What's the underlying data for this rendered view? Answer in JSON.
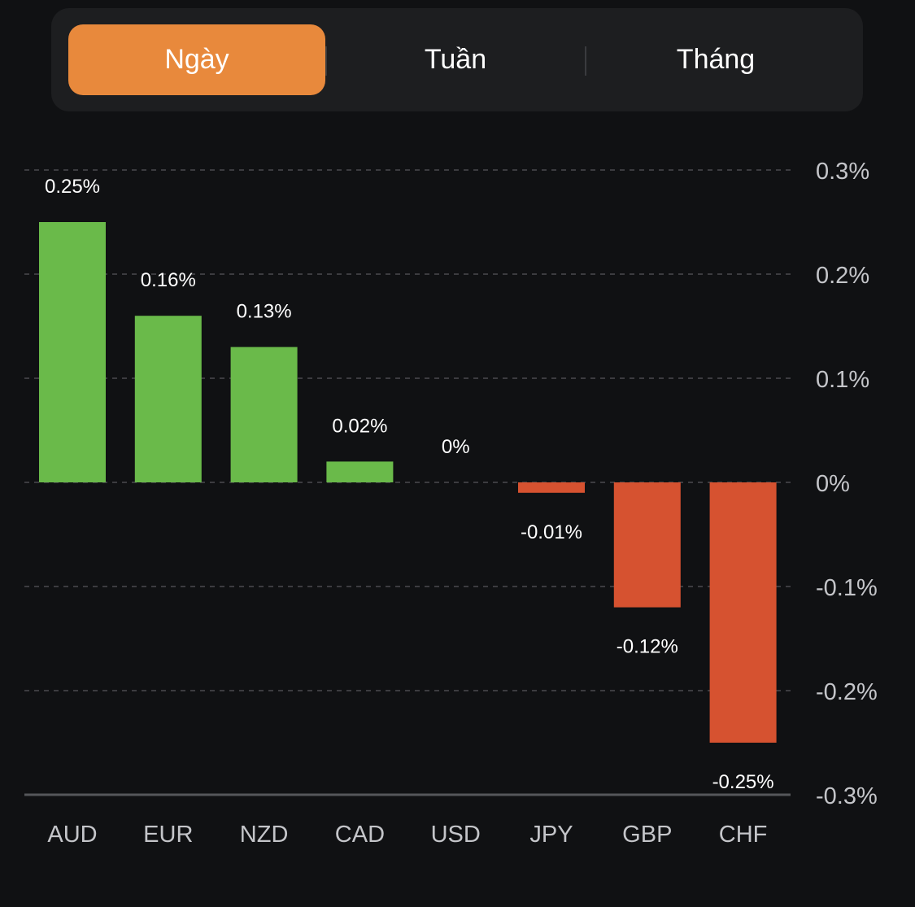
{
  "segmented_control": {
    "tabs": [
      {
        "label": "Ngày",
        "active": true
      },
      {
        "label": "Tuần",
        "active": false
      },
      {
        "label": "Tháng",
        "active": false
      }
    ],
    "active_color": "#e8893c"
  },
  "colors": {
    "positive": "#6aba4a",
    "negative": "#d65230",
    "background": "#101113"
  },
  "chart_data": {
    "type": "bar",
    "title": "",
    "xlabel": "",
    "ylabel": "",
    "categories": [
      "AUD",
      "EUR",
      "NZD",
      "CAD",
      "USD",
      "JPY",
      "GBP",
      "CHF"
    ],
    "values": [
      0.25,
      0.16,
      0.13,
      0.02,
      0,
      -0.01,
      -0.12,
      -0.25
    ],
    "value_labels": [
      "0.25%",
      "0.16%",
      "0.13%",
      "0.02%",
      "0%",
      "-0.01%",
      "-0.12%",
      "-0.25%"
    ],
    "ylim": [
      -0.3,
      0.3
    ],
    "y_ticks": [
      0.3,
      0.2,
      0.1,
      0,
      -0.1,
      -0.2,
      -0.3
    ],
    "y_tick_labels": [
      "0.3%",
      "0.2%",
      "0.1%",
      "0%",
      "-0.1%",
      "-0.2%",
      "-0.3%"
    ],
    "y_axis_position": "right",
    "grid": true,
    "unit": "%"
  }
}
